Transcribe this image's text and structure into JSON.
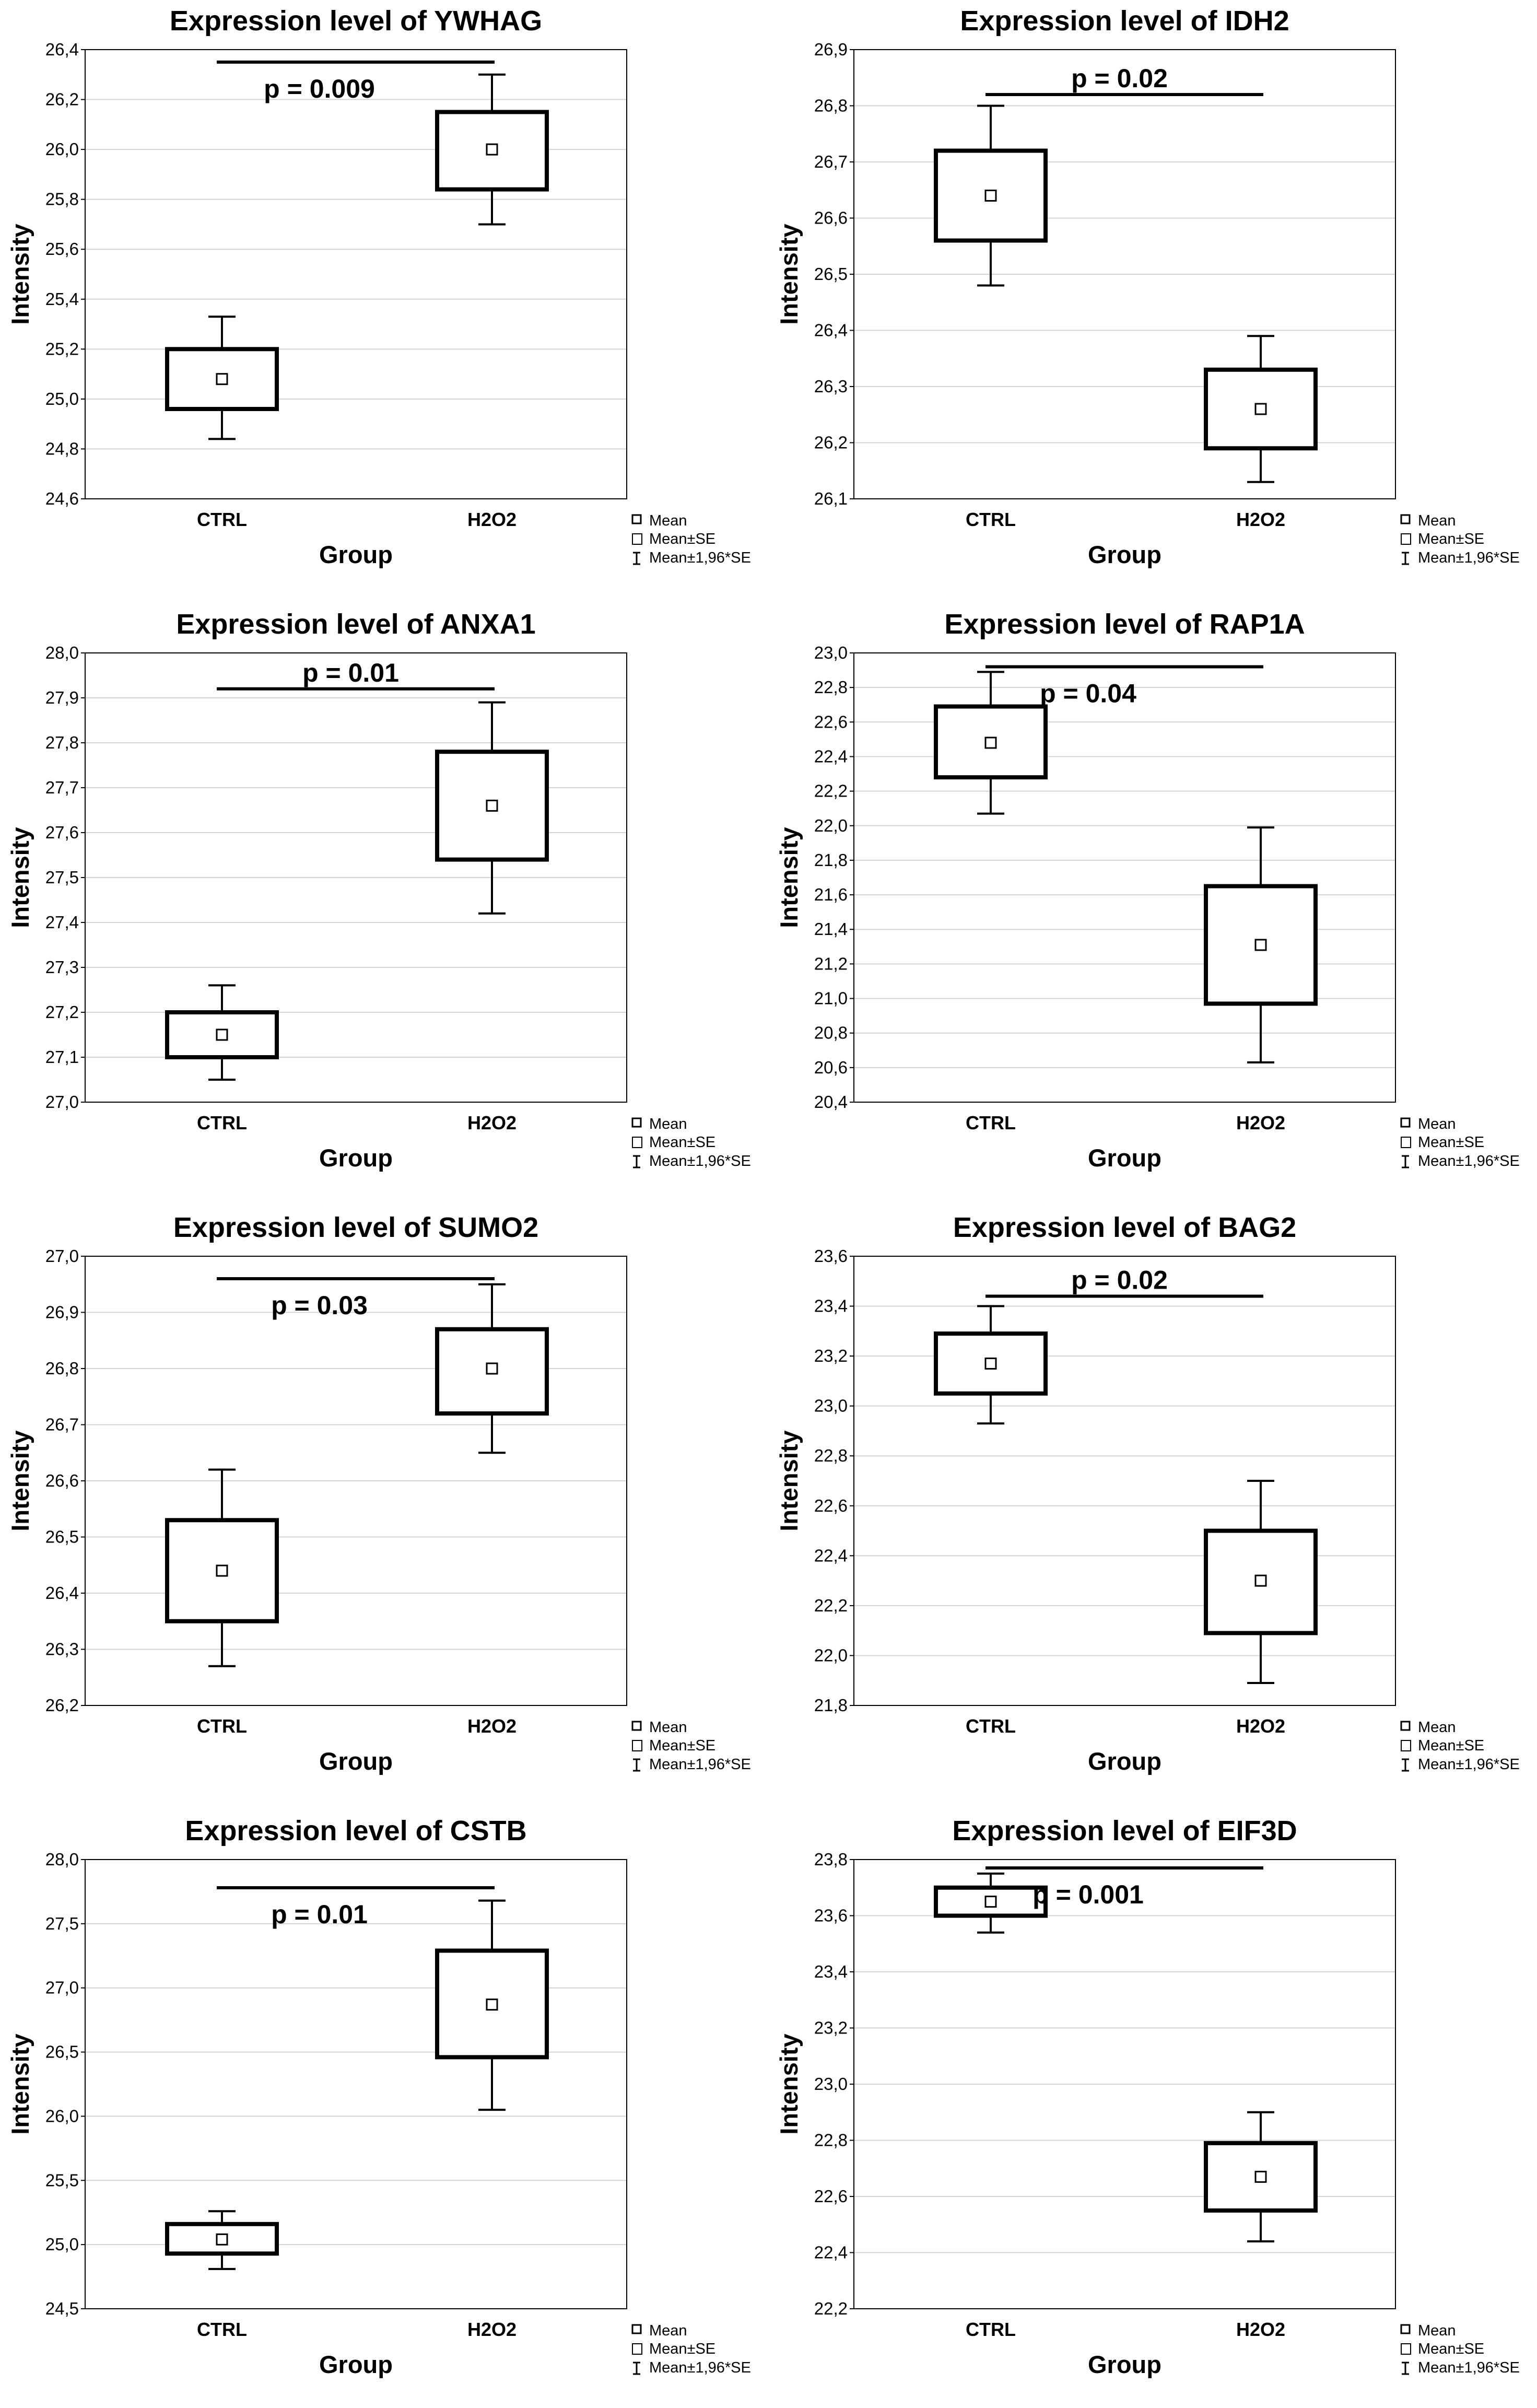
{
  "chart_data": [
    {
      "type": "box",
      "title": "Expression level of YWHAG",
      "xlabel": "Group",
      "ylabel": "Intensity",
      "categories": [
        "CTRL",
        "H2O2"
      ],
      "ylim": [
        24.6,
        26.4
      ],
      "yticks": [
        24.6,
        24.8,
        25.0,
        25.2,
        25.4,
        25.6,
        25.8,
        26.0,
        26.2,
        26.4
      ],
      "tick_decimals": 1,
      "mean": [
        25.08,
        26.0
      ],
      "se_low": [
        24.96,
        25.84
      ],
      "se_high": [
        25.2,
        26.15
      ],
      "ci_low": [
        24.84,
        25.7
      ],
      "ci_high": [
        25.33,
        26.3
      ],
      "p_label": "p = 0.009",
      "p_position": "below-line",
      "line_y": 26.35,
      "legend": [
        "Mean",
        "Mean±SE",
        "Mean±1,96*SE"
      ]
    },
    {
      "type": "box",
      "title": "Expression level of IDH2",
      "xlabel": "Group",
      "ylabel": "Intensity",
      "categories": [
        "CTRL",
        "H2O2"
      ],
      "ylim": [
        26.1,
        26.9
      ],
      "yticks": [
        26.1,
        26.2,
        26.3,
        26.4,
        26.5,
        26.6,
        26.7,
        26.8,
        26.9
      ],
      "tick_decimals": 1,
      "mean": [
        26.64,
        26.26
      ],
      "se_low": [
        26.56,
        26.19
      ],
      "se_high": [
        26.72,
        26.33
      ],
      "ci_low": [
        26.48,
        26.13
      ],
      "ci_high": [
        26.8,
        26.39
      ],
      "p_label": "p = 0.02",
      "p_position": "above-line",
      "line_y": 26.82,
      "legend": [
        "Mean",
        "Mean±SE",
        "Mean±1,96*SE"
      ]
    },
    {
      "type": "box",
      "title": "Expression level of ANXA1",
      "xlabel": "Group",
      "ylabel": "Intensity",
      "categories": [
        "CTRL",
        "H2O2"
      ],
      "ylim": [
        27.0,
        28.0
      ],
      "yticks": [
        27.0,
        27.1,
        27.2,
        27.3,
        27.4,
        27.5,
        27.6,
        27.7,
        27.8,
        27.9,
        28.0
      ],
      "tick_decimals": 1,
      "mean": [
        27.15,
        27.66
      ],
      "se_low": [
        27.1,
        27.54
      ],
      "se_high": [
        27.2,
        27.78
      ],
      "ci_low": [
        27.05,
        27.42
      ],
      "ci_high": [
        27.26,
        27.89
      ],
      "p_label": "p = 0.01",
      "p_position": "above-line",
      "line_y": 27.92,
      "legend": [
        "Mean",
        "Mean±SE",
        "Mean±1,96*SE"
      ]
    },
    {
      "type": "box",
      "title": "Expression level of RAP1A",
      "xlabel": "Group",
      "ylabel": "Intensity",
      "categories": [
        "CTRL",
        "H2O2"
      ],
      "ylim": [
        20.4,
        23.0
      ],
      "yticks": [
        20.4,
        20.6,
        20.8,
        21.0,
        21.2,
        21.4,
        21.6,
        21.8,
        22.0,
        22.2,
        22.4,
        22.6,
        22.8,
        23.0
      ],
      "tick_decimals": 1,
      "mean": [
        22.48,
        21.31
      ],
      "se_low": [
        22.28,
        20.97
      ],
      "se_high": [
        22.69,
        21.65
      ],
      "ci_low": [
        22.07,
        20.63
      ],
      "ci_high": [
        22.89,
        21.99
      ],
      "p_label": "p = 0.04",
      "p_position": "below-line",
      "line_y": 22.92,
      "legend": [
        "Mean",
        "Mean±SE",
        "Mean±1,96*SE"
      ]
    },
    {
      "type": "box",
      "title": "Expression level of SUMO2",
      "xlabel": "Group",
      "ylabel": "Intensity",
      "categories": [
        "CTRL",
        "H2O2"
      ],
      "ylim": [
        26.2,
        27.0
      ],
      "yticks": [
        26.2,
        26.3,
        26.4,
        26.5,
        26.6,
        26.7,
        26.8,
        26.9,
        27.0
      ],
      "tick_decimals": 1,
      "mean": [
        26.44,
        26.8
      ],
      "se_low": [
        26.35,
        26.72
      ],
      "se_high": [
        26.53,
        26.87
      ],
      "ci_low": [
        26.27,
        26.65
      ],
      "ci_high": [
        26.62,
        26.95
      ],
      "p_label": "p = 0.03",
      "p_position": "below-line",
      "line_y": 26.96,
      "legend": [
        "Mean",
        "Mean±SE",
        "Mean±1,96*SE"
      ]
    },
    {
      "type": "box",
      "title": "Expression level of BAG2",
      "xlabel": "Group",
      "ylabel": "Intensity",
      "categories": [
        "CTRL",
        "H2O2"
      ],
      "ylim": [
        21.8,
        23.6
      ],
      "yticks": [
        21.8,
        22.0,
        22.2,
        22.4,
        22.6,
        22.8,
        23.0,
        23.2,
        23.4,
        23.6
      ],
      "tick_decimals": 1,
      "mean": [
        23.17,
        22.3
      ],
      "se_low": [
        23.05,
        22.09
      ],
      "se_high": [
        23.29,
        22.5
      ],
      "ci_low": [
        22.93,
        21.89
      ],
      "ci_high": [
        23.4,
        22.7
      ],
      "p_label": "p = 0.02",
      "p_position": "above-line",
      "line_y": 23.44,
      "legend": [
        "Mean",
        "Mean±SE",
        "Mean±1,96*SE"
      ]
    },
    {
      "type": "box",
      "title": "Expression level of CSTB",
      "xlabel": "Group",
      "ylabel": "Intensity",
      "categories": [
        "CTRL",
        "H2O2"
      ],
      "ylim": [
        24.5,
        28.0
      ],
      "yticks": [
        24.5,
        25.0,
        25.5,
        26.0,
        26.5,
        27.0,
        27.5,
        28.0
      ],
      "tick_decimals": 1,
      "mean": [
        25.04,
        26.87
      ],
      "se_low": [
        24.93,
        26.46
      ],
      "se_high": [
        25.16,
        27.29
      ],
      "ci_low": [
        24.81,
        26.05
      ],
      "ci_high": [
        25.26,
        27.68
      ],
      "p_label": "p = 0.01",
      "p_position": "below-line",
      "line_y": 27.78,
      "legend": [
        "Mean",
        "Mean±SE",
        "Mean±1,96*SE"
      ]
    },
    {
      "type": "box",
      "title": "Expression level of EIF3D",
      "xlabel": "Group",
      "ylabel": "Intensity",
      "categories": [
        "CTRL",
        "H2O2"
      ],
      "ylim": [
        22.2,
        23.8
      ],
      "yticks": [
        22.2,
        22.4,
        22.6,
        22.8,
        23.0,
        23.2,
        23.4,
        23.6,
        23.8
      ],
      "tick_decimals": 1,
      "mean": [
        23.65,
        22.67
      ],
      "se_low": [
        23.6,
        22.55
      ],
      "se_high": [
        23.7,
        22.79
      ],
      "ci_low": [
        23.54,
        22.44
      ],
      "ci_high": [
        23.75,
        22.9
      ],
      "p_label": "p = 0.001",
      "p_position": "below-line",
      "line_y": 23.77,
      "legend": [
        "Mean",
        "Mean±SE",
        "Mean±1,96*SE"
      ]
    }
  ]
}
